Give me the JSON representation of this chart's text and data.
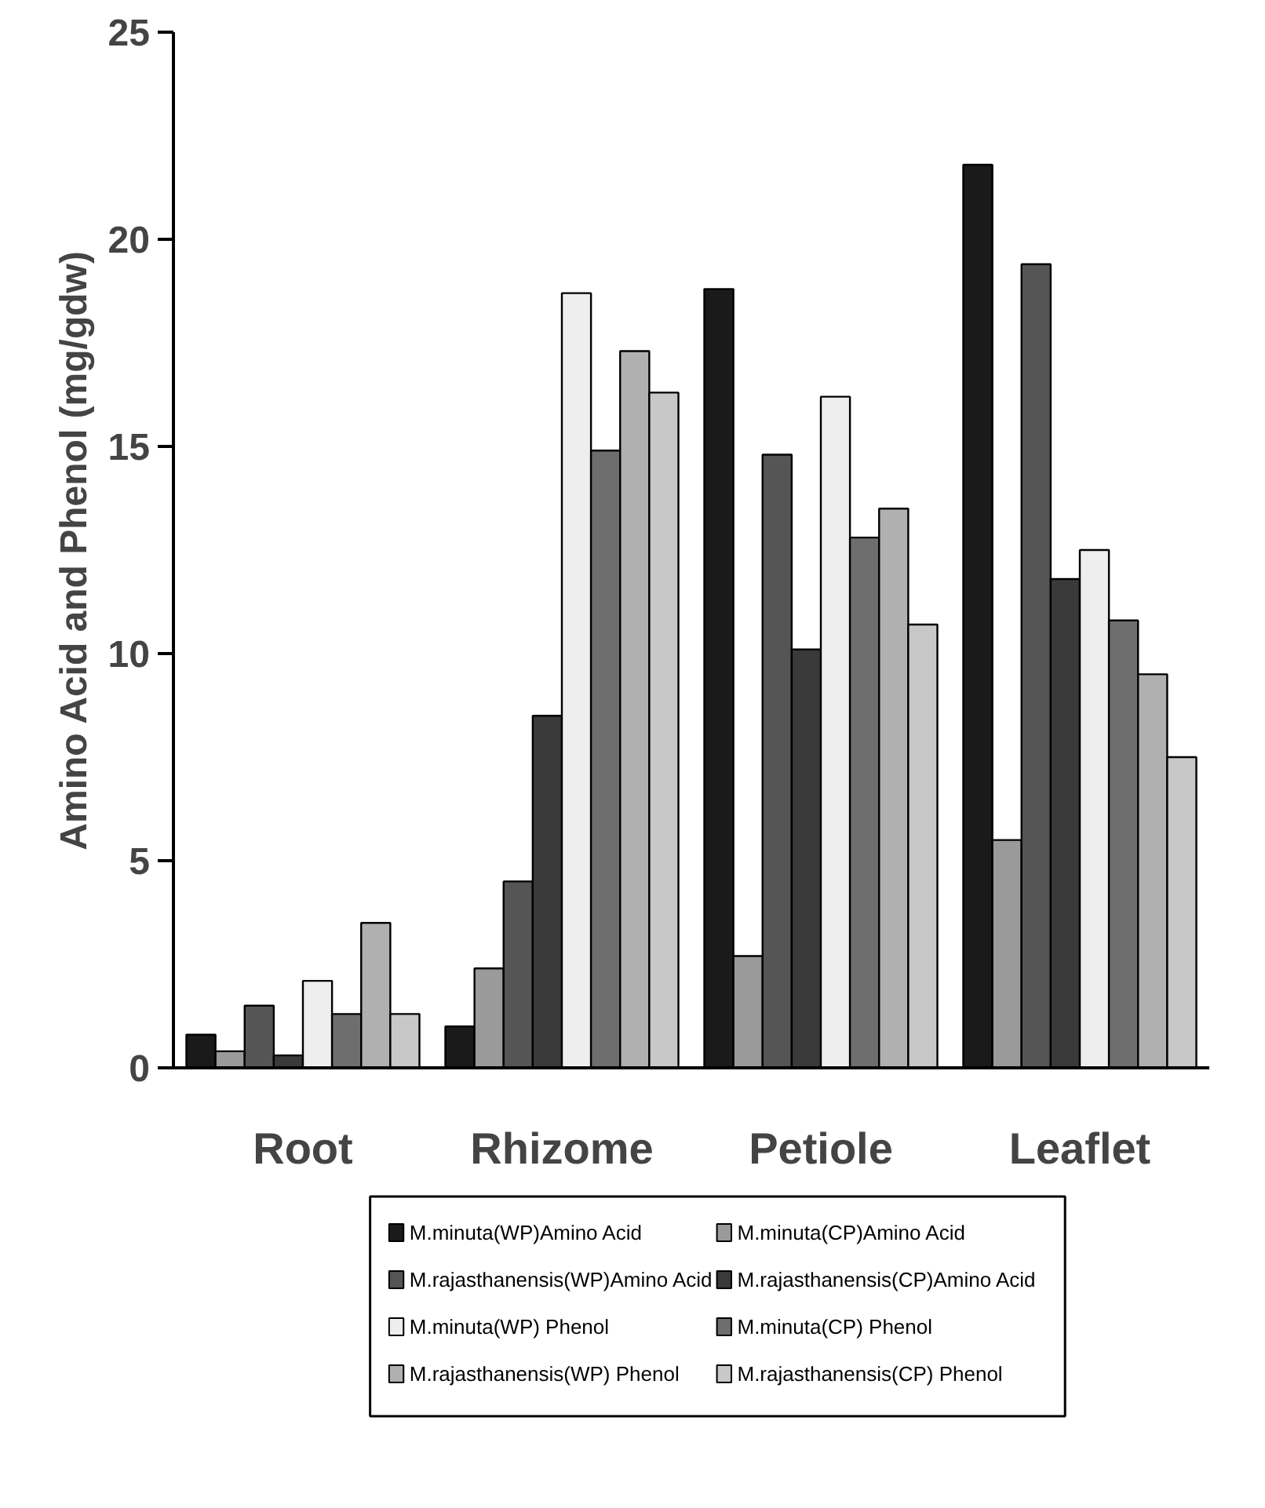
{
  "chart_data": {
    "type": "bar",
    "ylabel": "Amino Acid and Phenol (mg/gdw)",
    "categories": [
      "Root",
      "Rhizome",
      "Petiole",
      "Leaflet"
    ],
    "ylim": [
      0,
      25
    ],
    "yticks": [
      0,
      5,
      10,
      15,
      20,
      25
    ],
    "legend": "bottom",
    "grid": false,
    "series": [
      {
        "name": "M.minuta(WP)Amino Acid",
        "color": "#1a1a1a",
        "values": [
          0.8,
          1.0,
          18.8,
          21.8
        ]
      },
      {
        "name": "M.minuta(CP)Amino Acid",
        "color": "#9a9a9a",
        "values": [
          0.4,
          2.4,
          2.7,
          5.5
        ]
      },
      {
        "name": "M.rajasthanensis(WP)Amino Acid",
        "color": "#555555",
        "values": [
          1.5,
          4.5,
          14.8,
          19.4
        ]
      },
      {
        "name": "M.rajasthanensis(CP)Amino Acid",
        "color": "#3a3a3a",
        "values": [
          0.3,
          8.5,
          10.1,
          11.8
        ]
      },
      {
        "name": "M.minuta(WP) Phenol",
        "color": "#eeeeee",
        "values": [
          2.1,
          18.7,
          16.2,
          12.5
        ]
      },
      {
        "name": "M.minuta(CP) Phenol",
        "color": "#6e6e6e",
        "values": [
          1.3,
          14.9,
          12.8,
          10.8
        ]
      },
      {
        "name": "M.rajasthanensis(WP) Phenol",
        "color": "#b0b0b0",
        "values": [
          3.5,
          17.3,
          13.5,
          9.5
        ]
      },
      {
        "name": "M.rajasthanensis(CP) Phenol",
        "color": "#c8c8c8",
        "values": [
          1.3,
          16.3,
          10.7,
          7.5
        ]
      }
    ]
  }
}
